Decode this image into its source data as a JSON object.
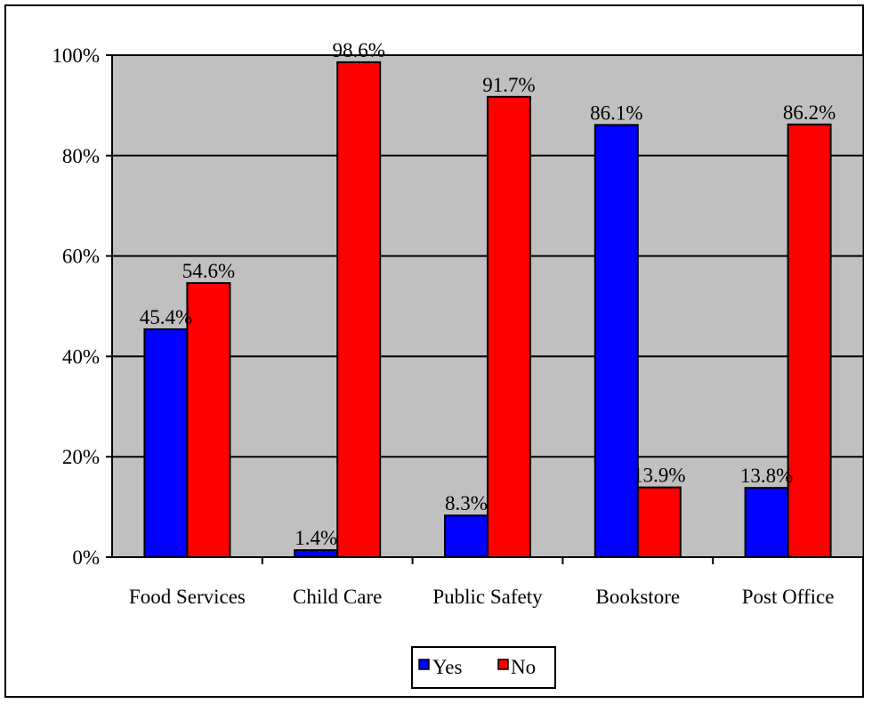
{
  "chart_data": {
    "type": "bar",
    "categories": [
      "Food Services",
      "Child Care",
      "Public Safety",
      "Bookstore",
      "Post Office"
    ],
    "series": [
      {
        "name": "Yes",
        "color": "#0000ff",
        "values": [
          45.4,
          1.4,
          8.3,
          86.1,
          13.8
        ],
        "labels": [
          "45.4%",
          "1.4%",
          "8.3%",
          "86.1%",
          "13.8%"
        ]
      },
      {
        "name": "No",
        "color": "#ff0000",
        "values": [
          54.6,
          98.6,
          91.7,
          13.9,
          86.2
        ],
        "labels": [
          "54.6%",
          "98.6%",
          "91.7%",
          "13.9%",
          "86.2%"
        ]
      }
    ],
    "y_ticks": [
      "0%",
      "20%",
      "40%",
      "60%",
      "80%",
      "100%"
    ],
    "ylim": [
      0,
      100
    ],
    "grid": true,
    "plot_background": "#c0c0c0",
    "legend_position": "bottom-center",
    "title": "",
    "xlabel": "",
    "ylabel": ""
  }
}
